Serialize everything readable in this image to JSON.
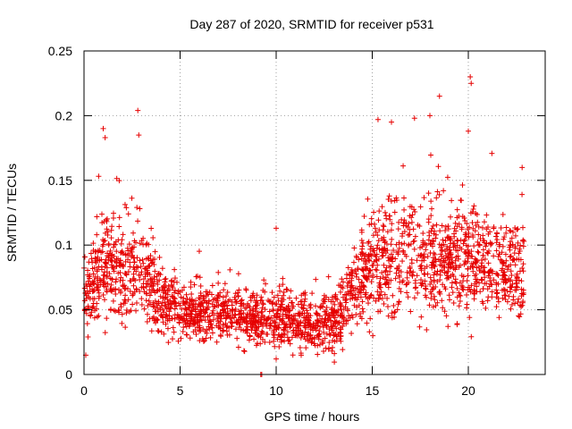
{
  "chart_data": {
    "type": "scatter",
    "title": "Day 287 of 2020, SRMTID for receiver p531",
    "xlabel": "GPS time / hours",
    "ylabel": "SRMTID / TECUs",
    "xlim": [
      0,
      24
    ],
    "ylim": [
      0,
      0.25
    ],
    "xticks": [
      0,
      5,
      10,
      15,
      20
    ],
    "xtick_labels": [
      "0",
      "5",
      "10",
      "15",
      "20"
    ],
    "yticks": [
      0,
      0.05,
      0.1,
      0.15,
      0.2,
      0.25
    ],
    "ytick_labels": [
      "0",
      "0.05",
      "0.1",
      "0.15",
      "0.2",
      "0.25"
    ],
    "grid": true,
    "marker": "+",
    "color": "#e60000",
    "envelope": [
      {
        "x": 0.0,
        "mean": 0.06,
        "spread": 0.03
      },
      {
        "x": 1.0,
        "mean": 0.085,
        "spread": 0.04
      },
      {
        "x": 2.0,
        "mean": 0.075,
        "spread": 0.035
      },
      {
        "x": 3.0,
        "mean": 0.085,
        "spread": 0.04
      },
      {
        "x": 4.0,
        "mean": 0.055,
        "spread": 0.022
      },
      {
        "x": 6.0,
        "mean": 0.047,
        "spread": 0.018
      },
      {
        "x": 8.0,
        "mean": 0.045,
        "spread": 0.018
      },
      {
        "x": 10.0,
        "mean": 0.042,
        "spread": 0.02
      },
      {
        "x": 12.0,
        "mean": 0.04,
        "spread": 0.02
      },
      {
        "x": 13.0,
        "mean": 0.038,
        "spread": 0.02
      },
      {
        "x": 14.0,
        "mean": 0.065,
        "spread": 0.025
      },
      {
        "x": 15.0,
        "mean": 0.085,
        "spread": 0.035
      },
      {
        "x": 16.0,
        "mean": 0.09,
        "spread": 0.04
      },
      {
        "x": 18.0,
        "mean": 0.09,
        "spread": 0.04
      },
      {
        "x": 20.0,
        "mean": 0.09,
        "spread": 0.04
      },
      {
        "x": 21.0,
        "mean": 0.085,
        "spread": 0.035
      },
      {
        "x": 22.0,
        "mean": 0.075,
        "spread": 0.03
      },
      {
        "x": 22.9,
        "mean": 0.085,
        "spread": 0.035
      }
    ],
    "point_count": 2400,
    "notable_points": [
      {
        "x": 1.0,
        "y": 0.19
      },
      {
        "x": 1.1,
        "y": 0.183
      },
      {
        "x": 2.8,
        "y": 0.204
      },
      {
        "x": 2.85,
        "y": 0.185
      },
      {
        "x": 15.3,
        "y": 0.197
      },
      {
        "x": 16.0,
        "y": 0.195
      },
      {
        "x": 17.2,
        "y": 0.198
      },
      {
        "x": 18.0,
        "y": 0.2
      },
      {
        "x": 18.5,
        "y": 0.215
      },
      {
        "x": 20.1,
        "y": 0.23
      },
      {
        "x": 20.15,
        "y": 0.225
      },
      {
        "x": 20.0,
        "y": 0.188
      },
      {
        "x": 22.8,
        "y": 0.16
      },
      {
        "x": 9.2,
        "y": 0.0
      },
      {
        "x": 9.25,
        "y": 0.0
      },
      {
        "x": 10.0,
        "y": 0.113
      },
      {
        "x": 10.0,
        "y": 0.012
      }
    ]
  }
}
